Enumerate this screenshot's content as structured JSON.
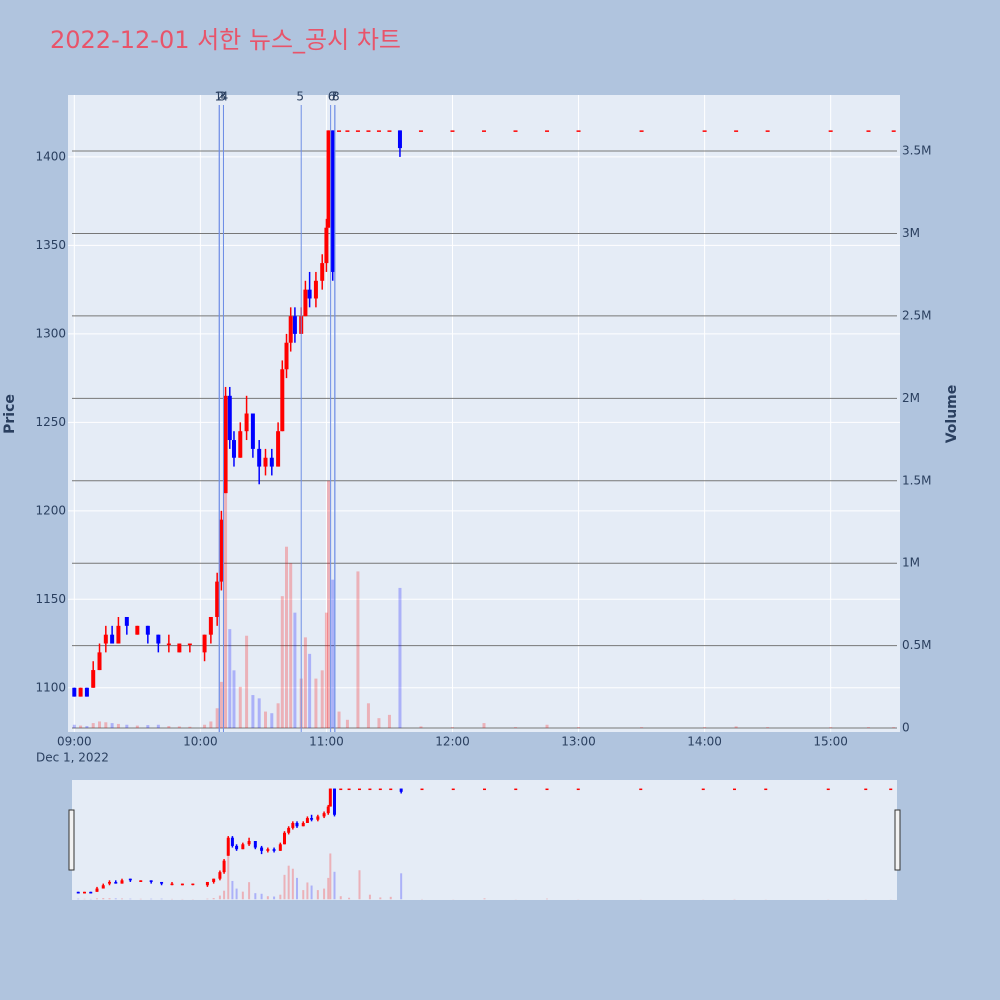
{
  "chart_data": {
    "type": "candlestick",
    "title": "2022-12-01 서한 뉴스_공시 차트",
    "y_label": "Price",
    "y2_label": "Volume",
    "date_label": "Dec 1, 2022",
    "increasing_color": "#ff0000",
    "decreasing_color": "#0000ff",
    "x": [
      "09:00",
      "09:03",
      "09:06",
      "09:09",
      "09:12",
      "09:15",
      "09:18",
      "09:21",
      "09:25",
      "09:30",
      "09:35",
      "09:40",
      "09:45",
      "09:50",
      "09:55",
      "10:02",
      "10:05",
      "10:08",
      "10:10",
      "10:12",
      "10:14",
      "10:16",
      "10:19",
      "10:22",
      "10:25",
      "10:28",
      "10:31",
      "10:34",
      "10:37",
      "10:39",
      "10:41",
      "10:43",
      "10:45",
      "10:48",
      "10:50",
      "10:52",
      "10:55",
      "10:58",
      "11:00",
      "11:01",
      "11:03",
      "11:06",
      "11:10",
      "11:15",
      "11:20",
      "11:25",
      "11:30",
      "11:35",
      "11:45",
      "12:00",
      "12:15",
      "12:30",
      "12:45",
      "13:00",
      "13:30",
      "14:00",
      "14:15",
      "14:30",
      "15:00",
      "15:18",
      "15:30"
    ],
    "open": [
      1100,
      1095,
      1100,
      1100,
      1110,
      1125,
      1130,
      1125,
      1140,
      1130,
      1135,
      1130,
      1125,
      1120,
      1125,
      1120,
      1130,
      1140,
      1160,
      1210,
      1265,
      1240,
      1230,
      1245,
      1255,
      1235,
      1225,
      1230,
      1225,
      1245,
      1280,
      1295,
      1310,
      1300,
      1310,
      1325,
      1320,
      1330,
      1340,
      1360,
      1415,
      1415,
      1415,
      1415,
      1415,
      1415,
      1415,
      1415,
      1415,
      1415,
      1415,
      1415,
      1415,
      1415,
      1415,
      1415,
      1415,
      1415,
      1415,
      1415,
      1415
    ],
    "high": [
      1100,
      1100,
      1100,
      1115,
      1125,
      1135,
      1135,
      1140,
      1140,
      1135,
      1135,
      1130,
      1130,
      1125,
      1125,
      1130,
      1140,
      1165,
      1200,
      1270,
      1270,
      1245,
      1250,
      1265,
      1255,
      1240,
      1235,
      1235,
      1250,
      1285,
      1300,
      1315,
      1315,
      1315,
      1330,
      1335,
      1335,
      1345,
      1365,
      1415,
      1415,
      1415,
      1415,
      1415,
      1415,
      1415,
      1415,
      1415,
      1415,
      1415,
      1415,
      1415,
      1415,
      1415,
      1415,
      1415,
      1415,
      1415,
      1415,
      1415,
      1415
    ],
    "low": [
      1095,
      1095,
      1095,
      1100,
      1110,
      1120,
      1125,
      1125,
      1130,
      1130,
      1125,
      1120,
      1120,
      1120,
      1120,
      1115,
      1125,
      1135,
      1155,
      1210,
      1235,
      1225,
      1230,
      1240,
      1230,
      1215,
      1220,
      1220,
      1225,
      1245,
      1275,
      1290,
      1295,
      1300,
      1310,
      1315,
      1315,
      1325,
      1335,
      1360,
      1330,
      1415,
      1415,
      1415,
      1415,
      1415,
      1415,
      1400,
      1415,
      1415,
      1415,
      1415,
      1415,
      1415,
      1415,
      1415,
      1415,
      1415,
      1415,
      1415,
      1415
    ],
    "close": [
      1095,
      1100,
      1095,
      1110,
      1120,
      1130,
      1125,
      1135,
      1135,
      1135,
      1130,
      1125,
      1125,
      1125,
      1125,
      1130,
      1140,
      1160,
      1195,
      1265,
      1240,
      1230,
      1245,
      1255,
      1235,
      1225,
      1230,
      1225,
      1245,
      1280,
      1295,
      1310,
      1300,
      1310,
      1325,
      1320,
      1330,
      1340,
      1360,
      1415,
      1335,
      1415,
      1415,
      1415,
      1415,
      1415,
      1415,
      1405,
      1415,
      1415,
      1415,
      1415,
      1415,
      1415,
      1415,
      1415,
      1415,
      1415,
      1415,
      1415,
      1415
    ],
    "volume": [
      20000,
      15000,
      12000,
      30000,
      40000,
      35000,
      30000,
      25000,
      20000,
      15000,
      18000,
      20000,
      12000,
      10000,
      8000,
      20000,
      40000,
      120000,
      280000,
      1500000,
      600000,
      350000,
      250000,
      560000,
      200000,
      180000,
      100000,
      90000,
      150000,
      800000,
      1100000,
      1000000,
      700000,
      300000,
      550000,
      450000,
      300000,
      350000,
      700000,
      1500000,
      900000,
      100000,
      50000,
      950000,
      150000,
      60000,
      80000,
      850000,
      10000,
      5000,
      30000,
      5000,
      20000,
      5000,
      5000,
      5000,
      10000,
      5000,
      5000,
      5000,
      5000
    ],
    "xlim": [
      "08:57",
      "15:33"
    ],
    "xticks": [
      "09:00",
      "10:00",
      "11:00",
      "12:00",
      "13:00",
      "14:00",
      "15:00"
    ],
    "ylim": [
      1075,
      1435
    ],
    "yticks": [
      1100,
      1150,
      1200,
      1250,
      1300,
      1350,
      1400
    ],
    "y2lim": [
      -24000,
      3840000
    ],
    "y2ticks": [
      0,
      {
        "value": 500000,
        "label": "0.5M"
      },
      {
        "value": 1000000,
        "label": "1M"
      },
      {
        "value": 1500000,
        "label": "1.5M"
      },
      {
        "value": 2000000,
        "label": "2M"
      },
      {
        "value": 2500000,
        "label": "2.5M"
      },
      {
        "value": 3000000,
        "label": "3M"
      },
      {
        "value": 3500000,
        "label": "3.5M"
      }
    ],
    "annotations": [
      {
        "x": "10:09",
        "label": "1"
      },
      {
        "x": "10:09",
        "label": "2"
      },
      {
        "x": "10:11",
        "label": "3"
      },
      {
        "x": "10:11",
        "label": "4"
      },
      {
        "x": "10:48",
        "label": "5"
      },
      {
        "x": "11:02",
        "label": "6"
      },
      {
        "x": "11:04",
        "label": "7"
      },
      {
        "x": "11:04",
        "label": "8"
      }
    ]
  }
}
